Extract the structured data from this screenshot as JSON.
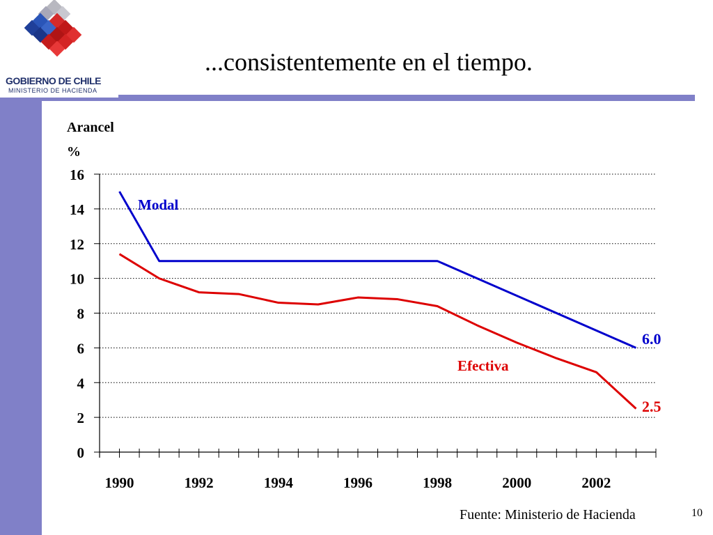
{
  "slide": {
    "title": "...consistentemente en el tiempo.",
    "source": "Fuente: Ministerio de Hacienda",
    "page_number": "10"
  },
  "logo": {
    "name": "GOBIERNO DE CHILE",
    "subtitle": "MINISTERIO DE HACIENDA"
  },
  "colors": {
    "accent": "#8080c8",
    "modal": "#0000cc",
    "efectiva": "#dd0000"
  },
  "chart_data": {
    "type": "line",
    "ylabel": "Arancel",
    "yunit": "%",
    "ylim": [
      0,
      16
    ],
    "yticks": [
      "0",
      "2",
      "4",
      "6",
      "8",
      "10",
      "12",
      "14",
      "16"
    ],
    "xlim": [
      1989.5,
      2003.5
    ],
    "xticks": [
      "1990",
      "1992",
      "1994",
      "1996",
      "1998",
      "2000",
      "2002"
    ],
    "grid": true,
    "series": [
      {
        "name": "Modal",
        "color": "#0000cc",
        "x": [
          1990,
          1991,
          1998,
          2003
        ],
        "values": [
          15,
          11,
          11,
          6
        ],
        "end_label": "6.0"
      },
      {
        "name": "Efectiva",
        "color": "#dd0000",
        "x": [
          1990,
          1991,
          1992,
          1993,
          1994,
          1995,
          1996,
          1997,
          1998,
          1999,
          2000,
          2001,
          2002,
          2003
        ],
        "values": [
          11.4,
          10,
          9.2,
          9.1,
          8.6,
          8.5,
          8.9,
          8.8,
          8.4,
          7.3,
          6.3,
          5.4,
          4.6,
          2.5
        ],
        "end_label": "2.5"
      }
    ]
  }
}
